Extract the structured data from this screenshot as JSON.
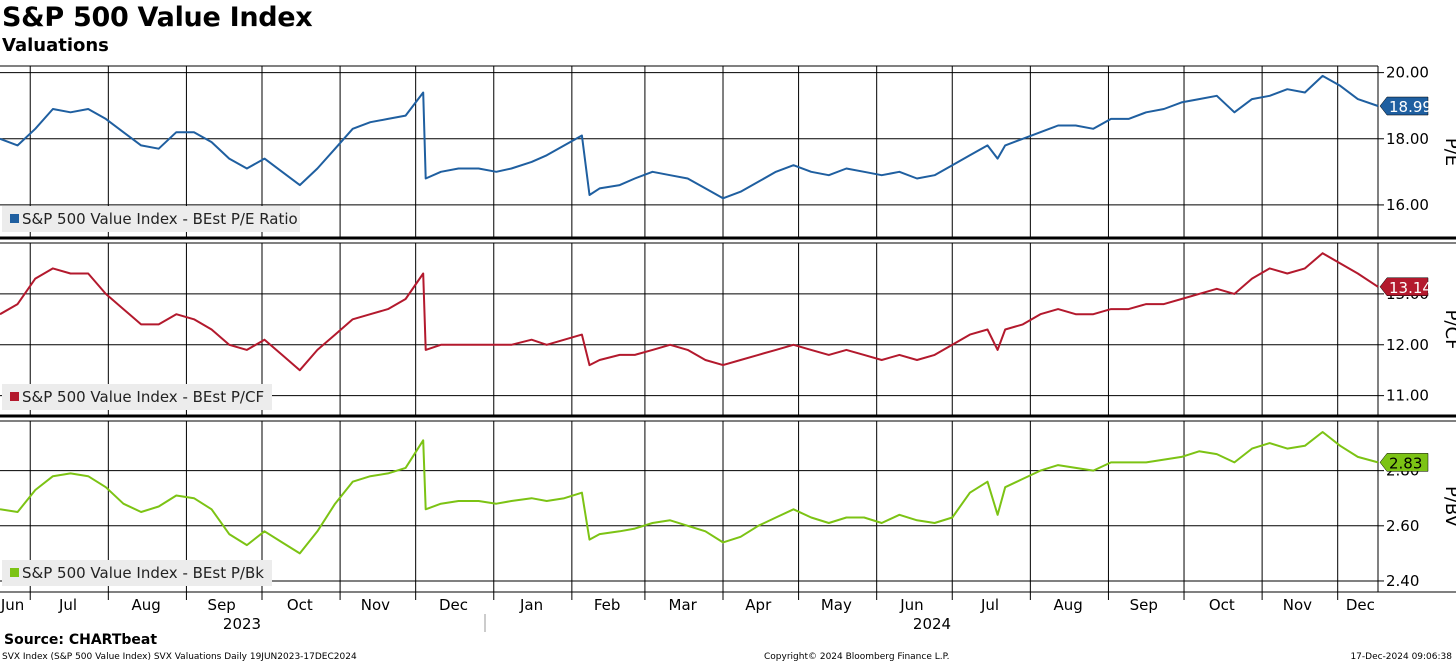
{
  "title": "S&P 500 Value Index",
  "subtitle": "Valuations",
  "source": "Source: CHARTbeat",
  "footer": {
    "left": "SVX Index (S&P 500 Value Index) SVX Valuations  Daily 19JUN2023-17DEC2024",
    "center": "Copyright© 2024 Bloomberg Finance L.P.",
    "right": "17-Dec-2024 09:06:38"
  },
  "chart_data": [
    {
      "type": "line",
      "ylabel": "P/E",
      "yticks": [
        16,
        18,
        20
      ],
      "ytick_labels": [
        "16.00",
        "18.00",
        "20.00"
      ],
      "ylim": [
        15.0,
        20.2
      ],
      "legend": "S&P 500 Value Index - BEst P/E Ratio",
      "last_value_label": "18.99",
      "color": "#1f5fa0",
      "series": [
        {
          "x": [
            "2023-06-19",
            "2023-06-26",
            "2023-07-03",
            "2023-07-10",
            "2023-07-17",
            "2023-07-24",
            "2023-07-31",
            "2023-08-07",
            "2023-08-14",
            "2023-08-21",
            "2023-08-28",
            "2023-09-04",
            "2023-09-11",
            "2023-09-18",
            "2023-09-25",
            "2023-10-02",
            "2023-10-09",
            "2023-10-16",
            "2023-10-23",
            "2023-10-30",
            "2023-11-06",
            "2023-11-13",
            "2023-11-20",
            "2023-11-27",
            "2023-12-04",
            "2023-12-05",
            "2023-12-11",
            "2023-12-18",
            "2023-12-26",
            "2024-01-02",
            "2024-01-08",
            "2024-01-16",
            "2024-01-22",
            "2024-01-29",
            "2024-02-05",
            "2024-02-08",
            "2024-02-12",
            "2024-02-20",
            "2024-02-26",
            "2024-03-04",
            "2024-03-11",
            "2024-03-18",
            "2024-03-25",
            "2024-04-01",
            "2024-04-08",
            "2024-04-15",
            "2024-04-22",
            "2024-04-29",
            "2024-05-06",
            "2024-05-13",
            "2024-05-20",
            "2024-05-27",
            "2024-06-03",
            "2024-06-10",
            "2024-06-17",
            "2024-06-24",
            "2024-07-01",
            "2024-07-08",
            "2024-07-15",
            "2024-07-19",
            "2024-07-22",
            "2024-07-29",
            "2024-08-05",
            "2024-08-12",
            "2024-08-19",
            "2024-08-26",
            "2024-09-02",
            "2024-09-09",
            "2024-09-16",
            "2024-09-23",
            "2024-09-30",
            "2024-10-07",
            "2024-10-14",
            "2024-10-21",
            "2024-10-28",
            "2024-11-04",
            "2024-11-11",
            "2024-11-18",
            "2024-11-25",
            "2024-12-02",
            "2024-12-09",
            "2024-12-17"
          ],
          "y": [
            18.0,
            17.8,
            18.3,
            18.9,
            18.8,
            18.9,
            18.6,
            18.2,
            17.8,
            17.7,
            18.2,
            18.2,
            17.9,
            17.4,
            17.1,
            17.4,
            17.0,
            16.6,
            17.1,
            17.7,
            18.3,
            18.5,
            18.6,
            18.7,
            19.4,
            16.8,
            17.0,
            17.1,
            17.1,
            17.0,
            17.1,
            17.3,
            17.5,
            17.8,
            18.1,
            16.3,
            16.5,
            16.6,
            16.8,
            17.0,
            16.9,
            16.8,
            16.5,
            16.2,
            16.4,
            16.7,
            17.0,
            17.2,
            17.0,
            16.9,
            17.1,
            17.0,
            16.9,
            17.0,
            16.8,
            16.9,
            17.2,
            17.5,
            17.8,
            17.4,
            17.8,
            18.0,
            18.2,
            18.4,
            18.4,
            18.3,
            18.6,
            18.6,
            18.8,
            18.9,
            19.1,
            19.2,
            19.3,
            18.8,
            19.2,
            19.3,
            19.5,
            19.4,
            19.9,
            19.6,
            19.2,
            18.99
          ]
        }
      ]
    },
    {
      "type": "line",
      "ylabel": "P/CF",
      "yticks": [
        11,
        12,
        13
      ],
      "ytick_labels": [
        "11.00",
        "12.00",
        "13.00"
      ],
      "ylim": [
        10.6,
        14.0
      ],
      "legend": "S&P 500 Value Index - BEst P/CF",
      "last_value_label": "13.14",
      "color": "#b3192d",
      "series": [
        {
          "x": [
            "2023-06-19",
            "2023-06-26",
            "2023-07-03",
            "2023-07-10",
            "2023-07-17",
            "2023-07-24",
            "2023-07-31",
            "2023-08-07",
            "2023-08-14",
            "2023-08-21",
            "2023-08-28",
            "2023-09-04",
            "2023-09-11",
            "2023-09-18",
            "2023-09-25",
            "2023-10-02",
            "2023-10-09",
            "2023-10-16",
            "2023-10-23",
            "2023-10-30",
            "2023-11-06",
            "2023-11-13",
            "2023-11-20",
            "2023-11-27",
            "2023-12-04",
            "2023-12-05",
            "2023-12-11",
            "2023-12-18",
            "2023-12-26",
            "2024-01-02",
            "2024-01-08",
            "2024-01-16",
            "2024-01-22",
            "2024-01-29",
            "2024-02-05",
            "2024-02-08",
            "2024-02-12",
            "2024-02-20",
            "2024-02-26",
            "2024-03-04",
            "2024-03-11",
            "2024-03-18",
            "2024-03-25",
            "2024-04-01",
            "2024-04-08",
            "2024-04-15",
            "2024-04-22",
            "2024-04-29",
            "2024-05-06",
            "2024-05-13",
            "2024-05-20",
            "2024-05-27",
            "2024-06-03",
            "2024-06-10",
            "2024-06-17",
            "2024-06-24",
            "2024-07-01",
            "2024-07-08",
            "2024-07-15",
            "2024-07-19",
            "2024-07-22",
            "2024-07-29",
            "2024-08-05",
            "2024-08-12",
            "2024-08-19",
            "2024-08-26",
            "2024-09-02",
            "2024-09-09",
            "2024-09-16",
            "2024-09-23",
            "2024-09-30",
            "2024-10-07",
            "2024-10-14",
            "2024-10-21",
            "2024-10-28",
            "2024-11-04",
            "2024-11-11",
            "2024-11-18",
            "2024-11-25",
            "2024-12-02",
            "2024-12-09",
            "2024-12-17"
          ],
          "y": [
            12.6,
            12.8,
            13.3,
            13.5,
            13.4,
            13.4,
            13.0,
            12.7,
            12.4,
            12.4,
            12.6,
            12.5,
            12.3,
            12.0,
            11.9,
            12.1,
            11.8,
            11.5,
            11.9,
            12.2,
            12.5,
            12.6,
            12.7,
            12.9,
            13.4,
            11.9,
            12.0,
            12.0,
            12.0,
            12.0,
            12.0,
            12.1,
            12.0,
            12.1,
            12.2,
            11.6,
            11.7,
            11.8,
            11.8,
            11.9,
            12.0,
            11.9,
            11.7,
            11.6,
            11.7,
            11.8,
            11.9,
            12.0,
            11.9,
            11.8,
            11.9,
            11.8,
            11.7,
            11.8,
            11.7,
            11.8,
            12.0,
            12.2,
            12.3,
            11.9,
            12.3,
            12.4,
            12.6,
            12.7,
            12.6,
            12.6,
            12.7,
            12.7,
            12.8,
            12.8,
            12.9,
            13.0,
            13.1,
            13.0,
            13.3,
            13.5,
            13.4,
            13.5,
            13.8,
            13.6,
            13.4,
            13.14
          ]
        }
      ]
    },
    {
      "type": "line",
      "ylabel": "P/BV",
      "yticks": [
        2.4,
        2.6,
        2.8
      ],
      "ytick_labels": [
        "2.40",
        "2.60",
        "2.80"
      ],
      "ylim": [
        2.36,
        2.98
      ],
      "legend": "S&P 500 Value Index - BEst P/Bk",
      "last_value_label": "2.83",
      "color": "#7cc314",
      "series": [
        {
          "x": [
            "2023-06-19",
            "2023-06-26",
            "2023-07-03",
            "2023-07-10",
            "2023-07-17",
            "2023-07-24",
            "2023-07-31",
            "2023-08-07",
            "2023-08-14",
            "2023-08-21",
            "2023-08-28",
            "2023-09-04",
            "2023-09-11",
            "2023-09-18",
            "2023-09-25",
            "2023-10-02",
            "2023-10-09",
            "2023-10-16",
            "2023-10-23",
            "2023-10-30",
            "2023-11-06",
            "2023-11-13",
            "2023-11-20",
            "2023-11-27",
            "2023-12-04",
            "2023-12-05",
            "2023-12-11",
            "2023-12-18",
            "2023-12-26",
            "2024-01-02",
            "2024-01-08",
            "2024-01-16",
            "2024-01-22",
            "2024-01-29",
            "2024-02-05",
            "2024-02-08",
            "2024-02-12",
            "2024-02-20",
            "2024-02-26",
            "2024-03-04",
            "2024-03-11",
            "2024-03-18",
            "2024-03-25",
            "2024-04-01",
            "2024-04-08",
            "2024-04-15",
            "2024-04-22",
            "2024-04-29",
            "2024-05-06",
            "2024-05-13",
            "2024-05-20",
            "2024-05-27",
            "2024-06-03",
            "2024-06-10",
            "2024-06-17",
            "2024-06-24",
            "2024-07-01",
            "2024-07-08",
            "2024-07-15",
            "2024-07-19",
            "2024-07-22",
            "2024-07-29",
            "2024-08-05",
            "2024-08-12",
            "2024-08-19",
            "2024-08-26",
            "2024-09-02",
            "2024-09-09",
            "2024-09-16",
            "2024-09-23",
            "2024-09-30",
            "2024-10-07",
            "2024-10-14",
            "2024-10-21",
            "2024-10-28",
            "2024-11-04",
            "2024-11-11",
            "2024-11-18",
            "2024-11-25",
            "2024-12-02",
            "2024-12-09",
            "2024-12-17"
          ],
          "y": [
            2.66,
            2.65,
            2.73,
            2.78,
            2.79,
            2.78,
            2.74,
            2.68,
            2.65,
            2.67,
            2.71,
            2.7,
            2.66,
            2.57,
            2.53,
            2.58,
            2.54,
            2.5,
            2.58,
            2.68,
            2.76,
            2.78,
            2.79,
            2.81,
            2.91,
            2.66,
            2.68,
            2.69,
            2.69,
            2.68,
            2.69,
            2.7,
            2.69,
            2.7,
            2.72,
            2.55,
            2.57,
            2.58,
            2.59,
            2.61,
            2.62,
            2.6,
            2.58,
            2.54,
            2.56,
            2.6,
            2.63,
            2.66,
            2.63,
            2.61,
            2.63,
            2.63,
            2.61,
            2.64,
            2.62,
            2.61,
            2.63,
            2.72,
            2.76,
            2.64,
            2.74,
            2.77,
            2.8,
            2.82,
            2.81,
            2.8,
            2.83,
            2.83,
            2.83,
            2.84,
            2.85,
            2.87,
            2.86,
            2.83,
            2.88,
            2.9,
            2.88,
            2.89,
            2.94,
            2.89,
            2.85,
            2.83
          ]
        }
      ]
    }
  ],
  "x_axis": {
    "months": [
      "Jun",
      "Jul",
      "Aug",
      "Sep",
      "Oct",
      "Nov",
      "Dec",
      "Jan",
      "Feb",
      "Mar",
      "Apr",
      "May",
      "Jun",
      "Jul",
      "Aug",
      "Sep",
      "Oct",
      "Nov",
      "Dec"
    ],
    "years": [
      "2023",
      "2024"
    ]
  }
}
